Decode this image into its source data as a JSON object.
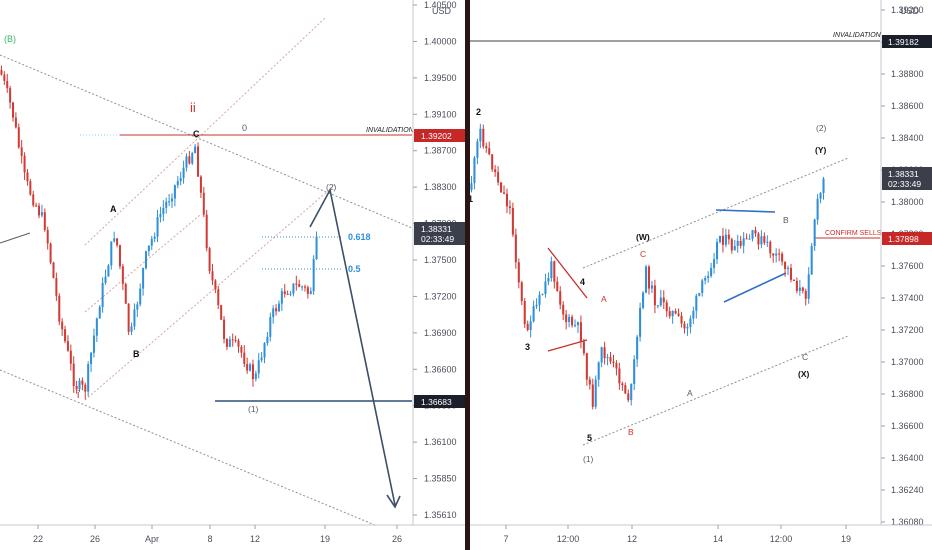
{
  "colors": {
    "up": "#2f8fd8",
    "down": "#d23b35",
    "trend": "#7d8593",
    "blue_line": "#2f6fc6",
    "red_line": "#c9302c",
    "arrow": "#3c4f66",
    "price_tag": "#1a1f2b",
    "invalid_tag": "#c62828",
    "gray_tag": "#3a3f4b"
  },
  "left": {
    "currency": "USD",
    "price_ticks": [
      "1.40500",
      "1.40000",
      "1.39500",
      "1.39100",
      "1.38700",
      "1.38300",
      "1.37900",
      "1.37500",
      "1.37200",
      "1.36900",
      "1.36600",
      "1.36350",
      "1.36100",
      "1.35850",
      "1.35610"
    ],
    "date_ticks": [
      "22",
      "26",
      "Apr",
      "8",
      "12",
      "19",
      "26"
    ],
    "invalidation": "INVALIDATION",
    "invalidation_tag": "1.39202",
    "support_tag": "1.36683",
    "live_tag": "1.38331",
    "live_tag2": "02:33:49",
    "fib_0": "0",
    "fib_618": "0.618",
    "fib_5": "0.5",
    "wave_top": "(B)",
    "wave_ii": "ii",
    "wave_i": "i",
    "wave_A": "A",
    "wave_B": "B",
    "wave_C": "C",
    "wave_1": "(1)",
    "wave_2": "(2)"
  },
  "right": {
    "currency": "USD",
    "price_ticks": [
      "1.39200",
      "1.39000",
      "1.38800",
      "1.38600",
      "1.38400",
      "1.38200",
      "1.38000",
      "1.37800",
      "1.37600",
      "1.37400",
      "1.37200",
      "1.37000",
      "1.36800",
      "1.36600",
      "1.36400",
      "1.36240",
      "1.36080"
    ],
    "date_ticks": [
      "7",
      "12:00",
      "12",
      "14",
      "12:00",
      "19"
    ],
    "invalidation": "INVALIDATION",
    "invalidation_tag": "1.39182",
    "confirm": "CONFIRM SELLS",
    "confirm_tag": "1.37898",
    "live_tag": "1.38331",
    "live_tag2": "02:33:49",
    "wave_1": "1",
    "wave_2": "2",
    "wave_3": "3",
    "wave_4": "4",
    "wave_5": "5",
    "wave_p1": "(1)",
    "wave_W": "(W)",
    "wave_X": "(X)",
    "wave_Y": "(Y)",
    "wave_p2": "(2)",
    "wave_A1": "A",
    "wave_B1": "B",
    "wave_C1": "C",
    "wave_A2": "A",
    "wave_B2": "B",
    "wave_C2": "C"
  }
}
